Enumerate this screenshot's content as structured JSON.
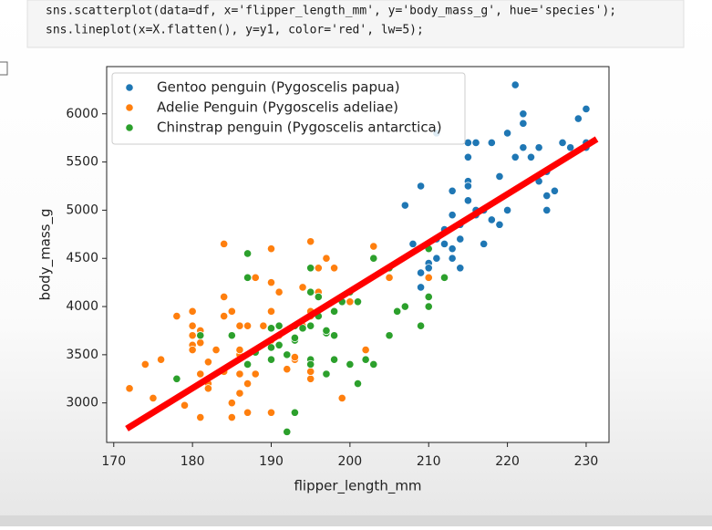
{
  "code": {
    "lines": [
      "sns.scatterplot(data=df, x='flipper_length_mm', y='body_mass_g', hue='species');",
      "sns.lineplot(x=X.flatten(), y=y1, color='red', lw=5);"
    ]
  },
  "chart_data": {
    "type": "scatter",
    "x_label": "flipper_length_mm",
    "y_label": "body_mass_g",
    "xlim": [
      169.1,
      232.9
    ],
    "ylim": [
      2590,
      6490
    ],
    "xticks": [
      170,
      180,
      190,
      200,
      210,
      220,
      230
    ],
    "yticks": [
      3000,
      3500,
      4000,
      4500,
      5000,
      5500,
      6000
    ],
    "legend": "upper left",
    "series": [
      {
        "name": "Gentoo penguin (Pygoscelis papua)",
        "color": "#1f77b4",
        "x": [
          211,
          230,
          210,
          218,
          215,
          210,
          211,
          219,
          209,
          215,
          214,
          216,
          214,
          213,
          210,
          217,
          210,
          221,
          209,
          222,
          218,
          215,
          213,
          215,
          215,
          210,
          220,
          222,
          209,
          221,
          220,
          208,
          230,
          222,
          225,
          214,
          228,
          216,
          212,
          224,
          225,
          216,
          223,
          229,
          226,
          224,
          213,
          230,
          217,
          219,
          207,
          211,
          213,
          227,
          225,
          212
        ],
        "values": [
          4500,
          5700,
          4450,
          5700,
          5700,
          4450,
          5800,
          5350,
          4200,
          5300,
          4400,
          5000,
          4850,
          5200,
          4400,
          5000,
          4600,
          5550,
          4350,
          5650,
          4900,
          5100,
          4600,
          5550,
          5250,
          4000,
          5000,
          6000,
          5250,
          6300,
          5800,
          4650,
          6050,
          5900,
          5400,
          4700,
          5650,
          4950,
          4800,
          5650,
          5150,
          5700,
          5550,
          5950,
          5200,
          5300,
          4500,
          5650,
          4650,
          4850,
          5050,
          4700,
          4950,
          5700,
          5000,
          4650
        ]
      },
      {
        "name": "Adelie Penguin (Pygoscelis adeliae)",
        "color": "#ff7f0e",
        "x": [
          181,
          186,
          195,
          193,
          190,
          181,
          195,
          193,
          190,
          186,
          180,
          182,
          191,
          198,
          185,
          195,
          197,
          184,
          194,
          174,
          180,
          189,
          185,
          180,
          187,
          183,
          187,
          172,
          180,
          178,
          178,
          188,
          184,
          195,
          196,
          190,
          180,
          181,
          184,
          182,
          195,
          186,
          196,
          185,
          190,
          182,
          179,
          190,
          191,
          186,
          188,
          190,
          200,
          187,
          191,
          186,
          193,
          181,
          194,
          185,
          195,
          192,
          184,
          199,
          203,
          210,
          190,
          202,
          176,
          205,
          175
        ],
        "values": [
          3750,
          3800,
          3250,
          3450,
          3650,
          3625,
          4675,
          3475,
          4250,
          3300,
          3700,
          3200,
          3800,
          4400,
          3700,
          3450,
          4500,
          3325,
          4200,
          3400,
          3600,
          3800,
          3950,
          3800,
          3800,
          3550,
          3200,
          3150,
          3950,
          3250,
          3900,
          3300,
          3900,
          3325,
          4150,
          3950,
          3550,
          3300,
          4650,
          3150,
          3900,
          3100,
          4400,
          3000,
          4600,
          3425,
          2975,
          3450,
          4150,
          3500,
          4300,
          3450,
          4050,
          2900,
          3700,
          3550,
          3800,
          2850,
          3800,
          2850,
          3950,
          3350,
          4100,
          3050,
          4625,
          4300,
          2900,
          3550,
          3450,
          4300,
          3050
        ]
      },
      {
        "name": "Chinstrap penguin (Pygoscelis antarctica)",
        "color": "#2ca02c",
        "x": [
          192,
          196,
          193,
          188,
          197,
          198,
          178,
          197,
          195,
          198,
          193,
          194,
          185,
          201,
          190,
          201,
          197,
          181,
          190,
          195,
          191,
          187,
          193,
          195,
          197,
          200,
          200,
          191,
          205,
          187,
          201,
          187,
          203,
          195,
          199,
          195,
          210,
          192,
          205,
          210,
          198,
          196,
          190,
          203,
          212,
          207,
          202,
          193,
          210,
          206,
          209
        ],
        "values": [
          3500,
          3900,
          3650,
          3525,
          3725,
          3950,
          3250,
          3750,
          4150,
          3700,
          3800,
          3775,
          3700,
          4050,
          3575,
          4050,
          3300,
          3700,
          3450,
          4400,
          3600,
          3400,
          2900,
          3800,
          3300,
          4150,
          3400,
          3800,
          3700,
          4550,
          3200,
          4300,
          3400,
          3450,
          4050,
          3400,
          4100,
          2700,
          4400,
          4600,
          3450,
          4100,
          3775,
          4500,
          4300,
          4000,
          3450,
          3675,
          4000,
          3950,
          3800
        ]
      }
    ],
    "line": {
      "color": "red",
      "x": [
        172,
        231
      ],
      "values": [
        2750,
        5720
      ]
    }
  }
}
